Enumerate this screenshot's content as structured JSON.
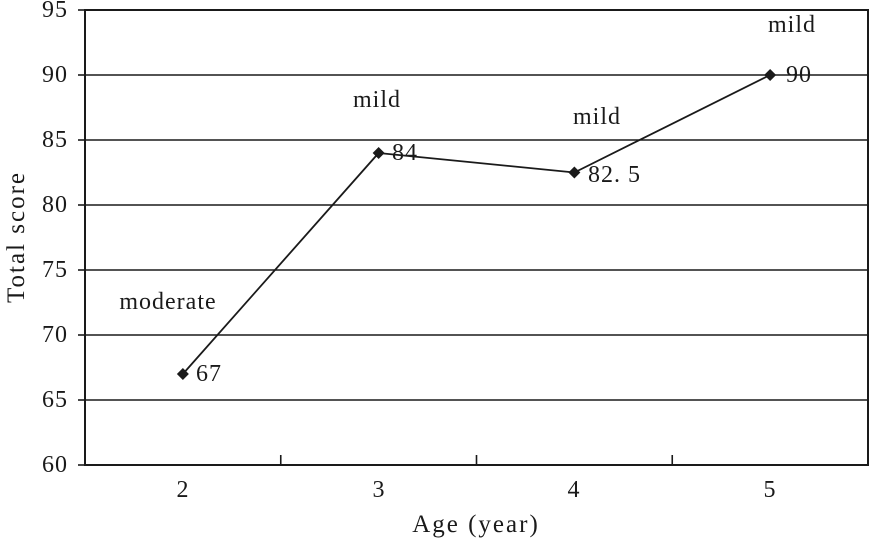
{
  "figure": {
    "background_color": "#ffffff",
    "ink_color": "#1a1a1a"
  },
  "chart_data": {
    "type": "line",
    "title": "",
    "xlabel": "Age (year)",
    "ylabel": "Total score",
    "x_categories": [
      "2",
      "3",
      "4",
      "5"
    ],
    "y_ticks": [
      "95",
      "90",
      "85",
      "80",
      "75",
      "70",
      "65",
      "60"
    ],
    "ylim": [
      60,
      95
    ],
    "grid": "horizontal",
    "legend": "none",
    "marker": "diamond",
    "line_color": "#1a1a1a",
    "series": [
      {
        "name": "Total score",
        "values": [
          67,
          84,
          82.5,
          90
        ]
      }
    ],
    "points": [
      {
        "x": "2",
        "value": 67,
        "value_label": "67",
        "severity": "moderate"
      },
      {
        "x": "3",
        "value": 84,
        "value_label": "84",
        "severity": "mild"
      },
      {
        "x": "4",
        "value": 82.5,
        "value_label": "82. 5",
        "severity": "mild"
      },
      {
        "x": "5",
        "value": 90,
        "value_label": "90",
        "severity": "mild"
      }
    ]
  }
}
